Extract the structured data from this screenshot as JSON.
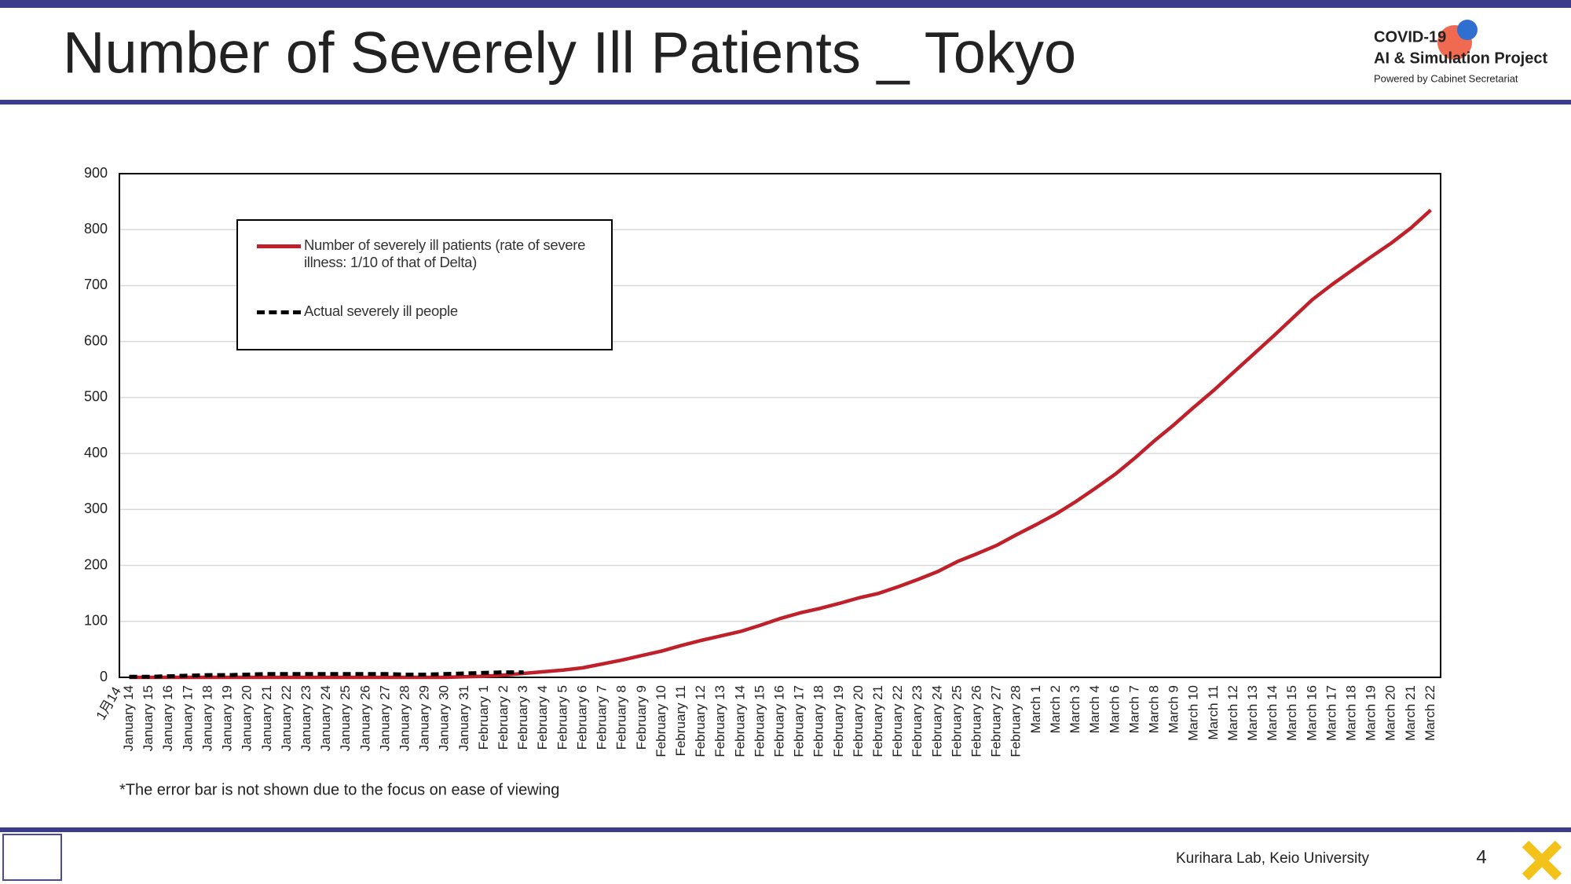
{
  "header": {
    "title": "Number of Severely Ill Patients _ Tokyo",
    "logo_line1": "COVID-19",
    "logo_line2": "AI & Simulation Project",
    "logo_line3": "Powered by Cabinet Secretariat"
  },
  "chart_data": {
    "type": "line",
    "categories": [
      "January 14",
      "January 15",
      "January 16",
      "January 17",
      "January 18",
      "January 19",
      "January 20",
      "January 21",
      "January 22",
      "January 23",
      "January 24",
      "January 25",
      "January 26",
      "January 27",
      "January 28",
      "January 29",
      "January 30",
      "January 31",
      "February 1",
      "February 2",
      "February 3",
      "February 4",
      "February 5",
      "February 6",
      "February 7",
      "February 8",
      "February 9",
      "February 10",
      "February 11",
      "February 12",
      "February 13",
      "February 14",
      "February 15",
      "February 16",
      "February 17",
      "February 18",
      "February 19",
      "February 20",
      "February 21",
      "February 22",
      "February 23",
      "February 24",
      "February 25",
      "February 26",
      "February 27",
      "February 28",
      "March 1",
      "March 2",
      "March 3",
      "March 4",
      "March 6",
      "March 7",
      "March 8",
      "March 9",
      "March 10",
      "March 11",
      "March 12",
      "March 13",
      "March 14",
      "March 15",
      "March 16",
      "March 17",
      "March 18",
      "March 19",
      "March 20",
      "March 21",
      "March 22"
    ],
    "series": [
      {
        "name": "Number of severely ill patients (rate of severe illness: 1/10 of that of Delta)",
        "color": "#c0202a",
        "values": [
          0,
          0,
          0,
          0,
          0,
          0,
          0,
          0,
          0,
          0,
          0,
          0,
          0,
          0,
          0,
          0,
          0,
          1,
          2,
          4,
          7,
          10,
          13,
          17,
          24,
          31,
          39,
          47,
          57,
          66,
          74,
          82,
          93,
          105,
          115,
          123,
          132,
          142,
          150,
          162,
          175,
          189,
          207,
          221,
          236,
          255,
          273,
          292,
          314,
          338,
          363,
          392,
          423,
          452,
          483,
          513,
          545,
          577,
          609,
          642,
          675,
          702,
          727,
          752,
          776,
          803,
          835
        ]
      },
      {
        "name": "Actual severely ill people",
        "color": "#000000",
        "dashed": true,
        "values": [
          1,
          1,
          2,
          3,
          4,
          4,
          5,
          6,
          6,
          6,
          6,
          6,
          6,
          6,
          5,
          5,
          6,
          7,
          8,
          9,
          9,
          null,
          null,
          null,
          null,
          null,
          null,
          null,
          null,
          null,
          null,
          null,
          null,
          null,
          null,
          null,
          null,
          null,
          null,
          null,
          null,
          null,
          null,
          null,
          null,
          null,
          null,
          null,
          null,
          null,
          null,
          null,
          null,
          null,
          null,
          null,
          null,
          null,
          null,
          null,
          null,
          null,
          null,
          null,
          null,
          null,
          null
        ]
      }
    ],
    "ylim": [
      0,
      900
    ],
    "yticks": [
      0,
      100,
      200,
      300,
      400,
      500,
      600,
      700,
      800,
      900
    ],
    "grid": true,
    "legend": "upper left",
    "annotation": "1月14",
    "footnote": "*The error bar is not shown due to the focus on ease of viewing"
  },
  "footer": {
    "credit": "Kurihara Lab, Keio University",
    "page": "4"
  }
}
